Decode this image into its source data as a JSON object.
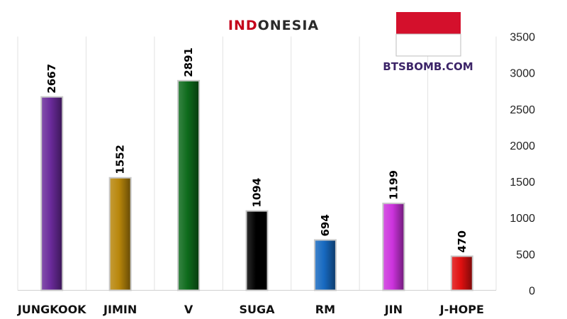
{
  "chart_data": {
    "type": "bar",
    "title_highlight": "IND",
    "title_rest": "ONESIA",
    "watermark": "BTSBOMB.COM",
    "categories": [
      "JUNGKOOK",
      "JIMIN",
      "V",
      "SUGA",
      "RM",
      "JIN",
      "J-HOPE"
    ],
    "values": [
      2667,
      1552,
      2891,
      1094,
      694,
      1199,
      470
    ],
    "ylim": [
      0,
      3500
    ],
    "yticks": [
      0,
      500,
      1000,
      1500,
      2000,
      2500,
      3000,
      3500
    ],
    "y_axis_side": "right",
    "grid": "vertical",
    "bar_colors": [
      "#6a2a9a",
      "#b8860b",
      "#0e6b1c",
      "#000000",
      "#1769c0",
      "#cc33dd",
      "#e01010"
    ],
    "flag_colors": [
      "#d4102c",
      "#ffffff"
    ],
    "colors": {
      "title_highlight": "#c4001b",
      "title_rest": "#2a2a2a",
      "watermark": "#3c2468"
    }
  }
}
